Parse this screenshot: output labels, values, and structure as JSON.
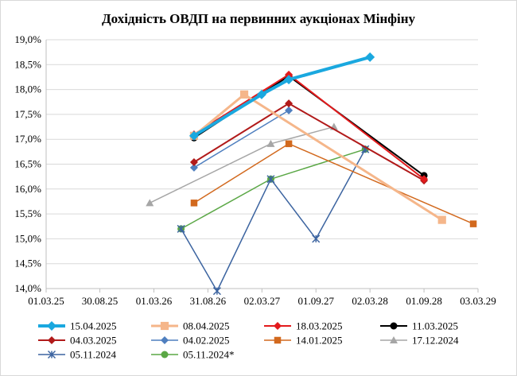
{
  "chart_data": {
    "type": "line",
    "title": "Дохідність ОВДП на первинних аукціонах Мінфіну",
    "xlabel": "",
    "ylabel": "",
    "x_axis": {
      "type": "date",
      "min": "2025-03-01",
      "max": "2029-03-03",
      "tick_labels": [
        "01.03.25",
        "30.08.25",
        "01.03.26",
        "31.08.26",
        "02.03.27",
        "01.09.27",
        "02.03.28",
        "01.09.28",
        "03.03.29"
      ],
      "tick_dates": [
        "2025-03-01",
        "2025-08-30",
        "2026-03-01",
        "2026-08-31",
        "2027-03-02",
        "2027-09-01",
        "2028-03-02",
        "2028-09-01",
        "2029-03-03"
      ]
    },
    "y_axis": {
      "min": 0.14,
      "max": 0.19,
      "step": 0.005,
      "tick_labels": [
        "14,0%",
        "14,5%",
        "15,0%",
        "15,5%",
        "16,0%",
        "16,5%",
        "17,0%",
        "17,5%",
        "18,0%",
        "18,5%",
        "19,0%"
      ]
    },
    "grid": {
      "horizontal": true,
      "vertical": false
    },
    "legend_position": "bottom",
    "series": [
      {
        "name": "15.04.2025",
        "color": "#1aa8df",
        "marker": "diamond",
        "line_width": 4,
        "points": [
          [
            "2026-07-15",
            0.1707
          ],
          [
            "2027-03-01",
            0.179
          ],
          [
            "2027-06-01",
            0.182
          ],
          [
            "2028-03-02",
            0.1865
          ]
        ]
      },
      {
        "name": "08.04.2025",
        "color": "#f5b68a",
        "marker": "square",
        "line_width": 3,
        "points": [
          [
            "2026-07-15",
            0.1707
          ],
          [
            "2027-01-01",
            0.179
          ],
          [
            "2028-11-01",
            0.1538
          ]
        ]
      },
      {
        "name": "18.03.2025",
        "color": "#e31a1c",
        "marker": "diamond",
        "line_width": 2,
        "points": [
          [
            "2026-07-15",
            0.171
          ],
          [
            "2027-06-01",
            0.183
          ],
          [
            "2028-09-01",
            0.162
          ]
        ]
      },
      {
        "name": "11.03.2025",
        "color": "#000000",
        "marker": "circle",
        "line_width": 2,
        "points": [
          [
            "2026-07-15",
            0.1703
          ],
          [
            "2027-06-01",
            0.1827
          ],
          [
            "2028-09-01",
            0.1627
          ]
        ]
      },
      {
        "name": "04.03.2025",
        "color": "#b11a1a",
        "marker": "diamond",
        "line_width": 2,
        "points": [
          [
            "2026-07-15",
            0.1654
          ],
          [
            "2027-06-01",
            0.1772
          ],
          [
            "2028-09-01",
            0.1617
          ]
        ]
      },
      {
        "name": "04.02.2025",
        "color": "#4f7fbf",
        "marker": "diamond",
        "line_width": 1.5,
        "points": [
          [
            "2026-07-15",
            0.1643
          ],
          [
            "2027-06-01",
            0.1758
          ]
        ]
      },
      {
        "name": "14.01.2025",
        "color": "#d2691e",
        "marker": "square",
        "line_width": 1.5,
        "points": [
          [
            "2026-07-15",
            0.1572
          ],
          [
            "2027-06-01",
            0.1691
          ],
          [
            "2029-02-15",
            0.153
          ]
        ]
      },
      {
        "name": "17.12.2024",
        "color": "#a6a6a6",
        "marker": "triangle",
        "line_width": 1.5,
        "points": [
          [
            "2026-02-15",
            0.1572
          ],
          [
            "2027-04-01",
            0.1691
          ],
          [
            "2027-11-01",
            0.1725
          ]
        ]
      },
      {
        "name": "05.11.2024",
        "color": "#3c64a0",
        "marker": "star",
        "line_width": 1.5,
        "points": [
          [
            "2026-06-01",
            0.152
          ],
          [
            "2026-10-01",
            0.1395
          ],
          [
            "2027-04-01",
            0.162
          ],
          [
            "2027-09-01",
            0.15
          ],
          [
            "2028-02-15",
            0.168
          ]
        ]
      },
      {
        "name": "05.11.2024*",
        "color": "#5aa745",
        "marker": "circle",
        "line_width": 1.5,
        "points": [
          [
            "2026-06-01",
            0.152
          ],
          [
            "2027-04-01",
            0.162
          ],
          [
            "2028-02-15",
            0.168
          ]
        ]
      }
    ]
  }
}
